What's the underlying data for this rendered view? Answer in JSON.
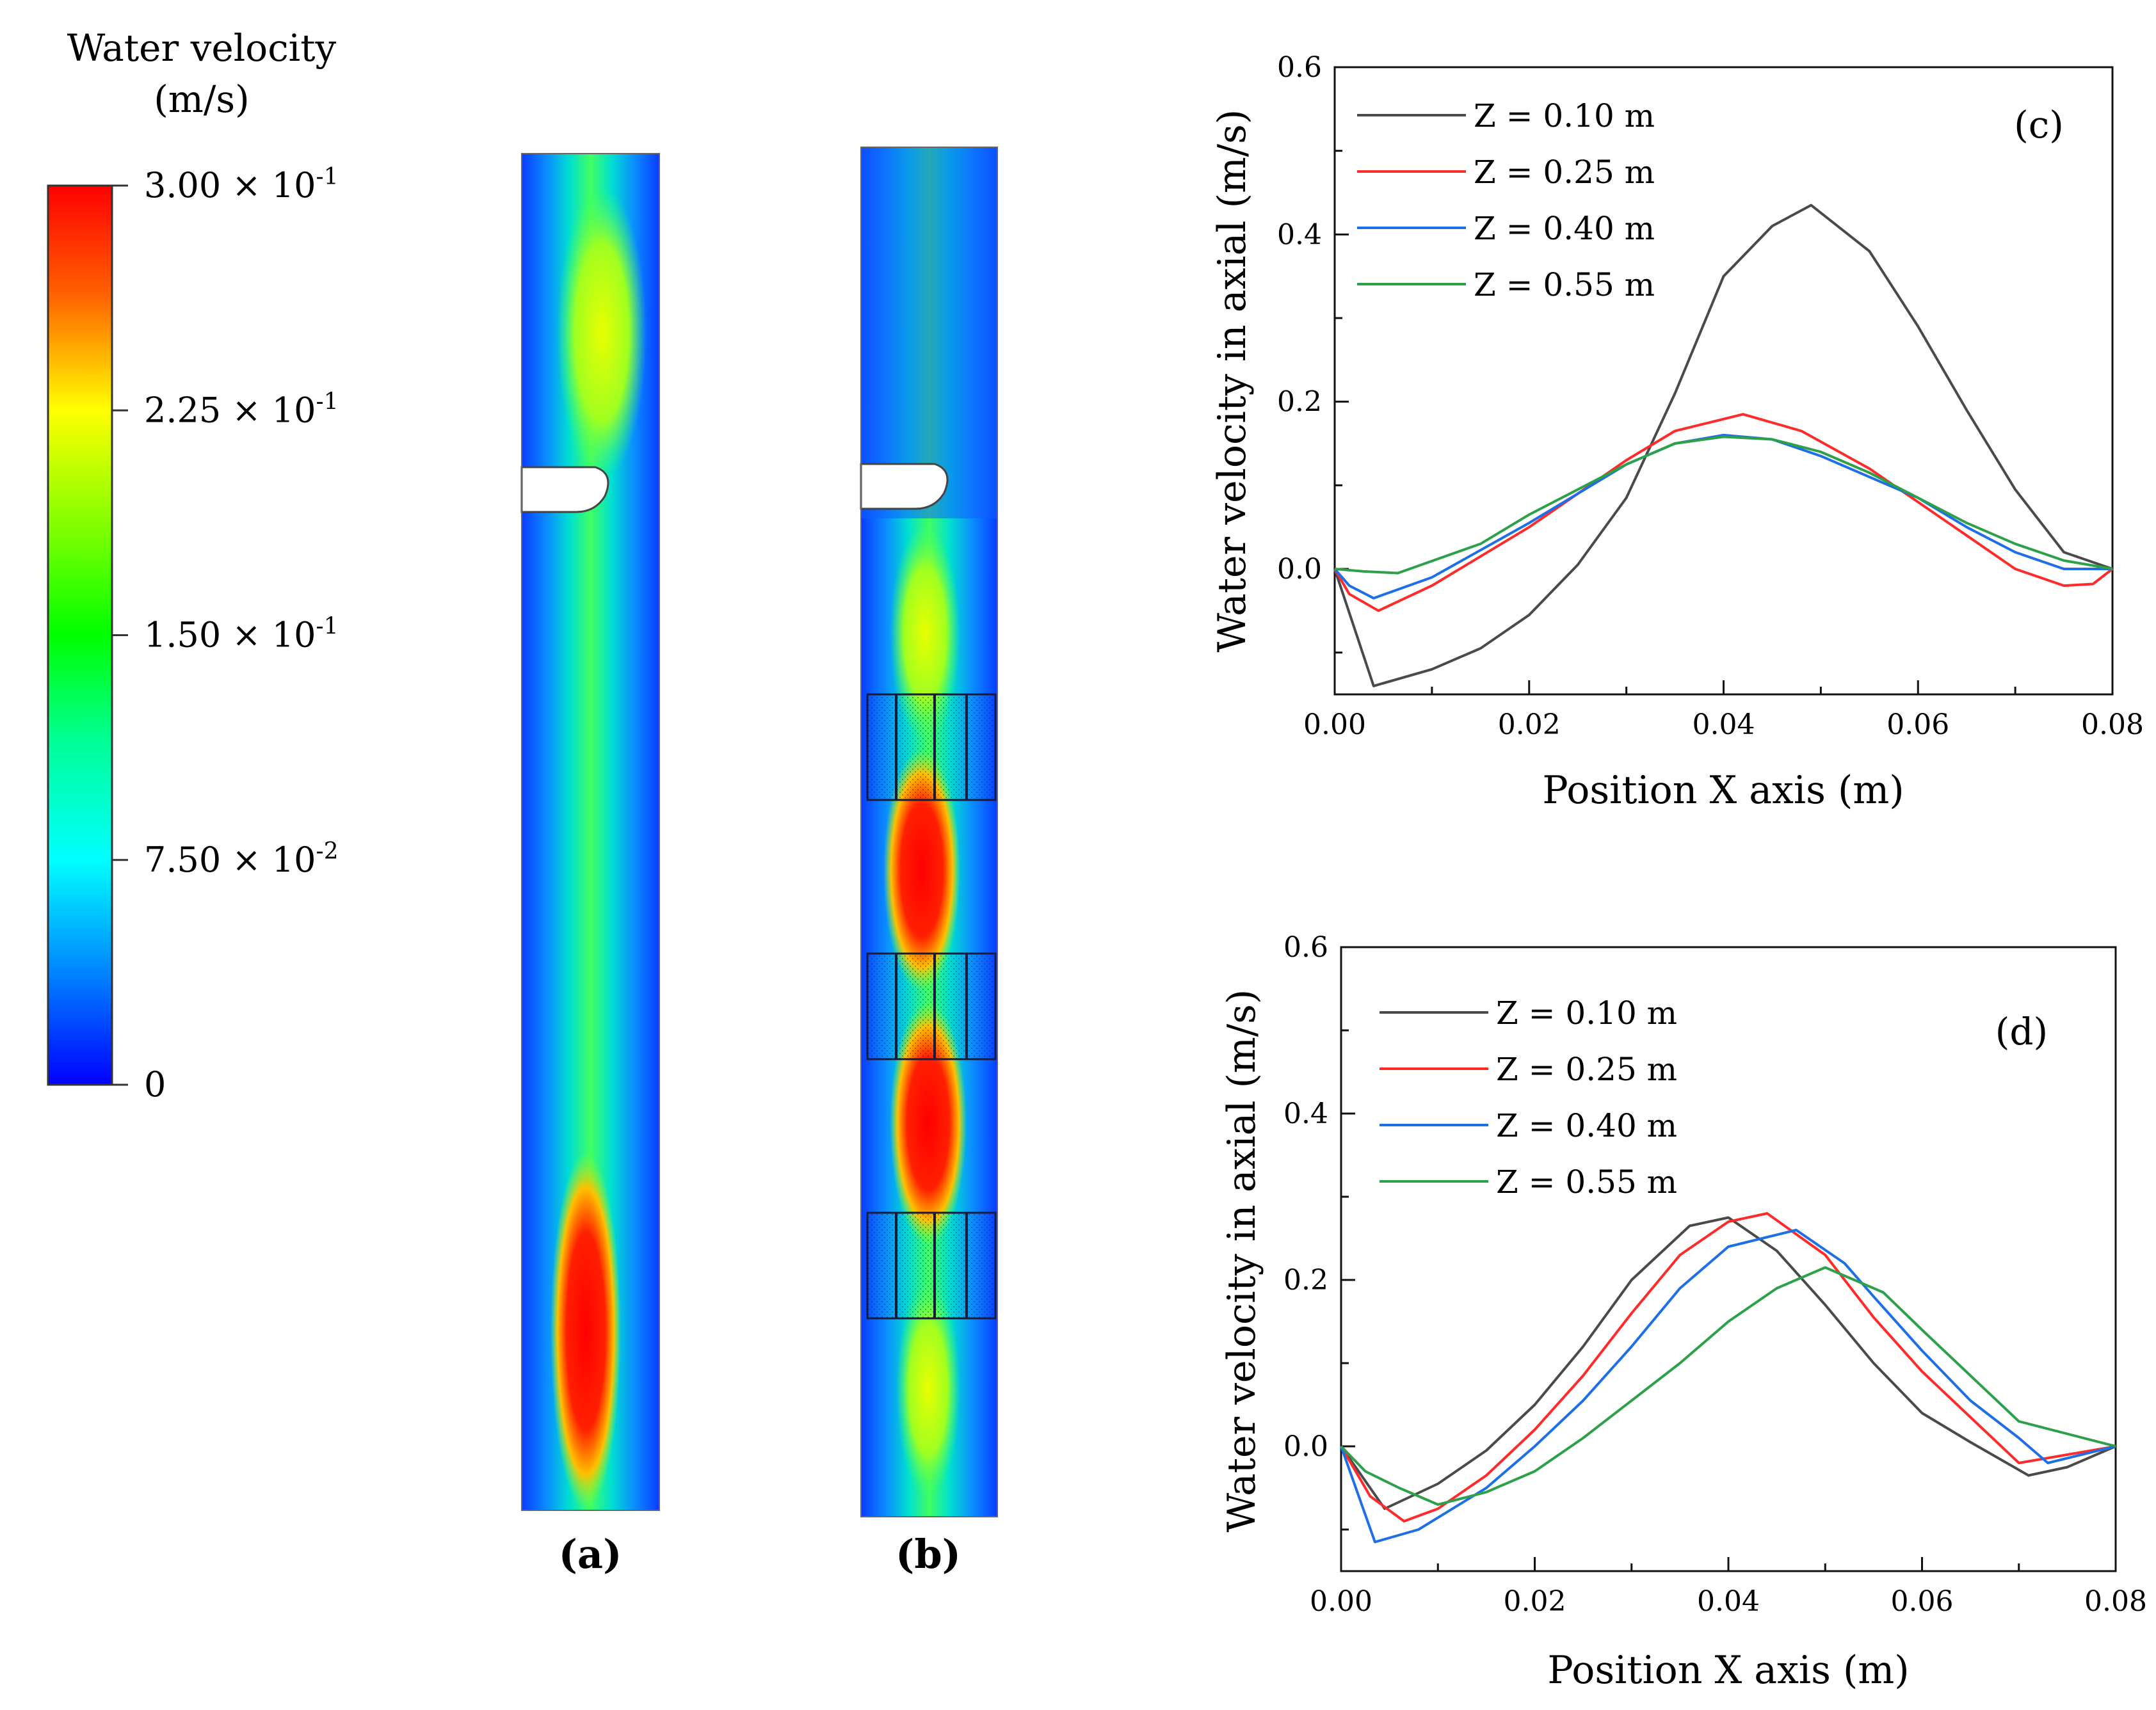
{
  "colorbar": {
    "title_line1": "Water velocity",
    "title_line2": "(m/s)",
    "ticks": [
      {
        "value": 0.3,
        "label": "3.00 × 10",
        "exp": "-1"
      },
      {
        "value": 0.225,
        "label": "2.25 × 10",
        "exp": "-1"
      },
      {
        "value": 0.15,
        "label": "1.50 × 10",
        "exp": "-1"
      },
      {
        "value": 0.075,
        "label": "7.50 × 10",
        "exp": "-2"
      },
      {
        "value": 0,
        "label": "0",
        "exp": ""
      }
    ],
    "colors": [
      "#ff0000",
      "#ff8000",
      "#ffff00",
      "#80ff00",
      "#00ff00",
      "#00ff80",
      "#00ffff",
      "#0080ff",
      "#0000ff"
    ]
  },
  "contours": {
    "a_label": "(a)",
    "b_label": "(b)"
  },
  "chart_data": [
    {
      "type": "line",
      "panel_label": "(c)",
      "xlabel": "Position X axis (m)",
      "ylabel": "Water velocity in axial (m/s)",
      "xlim": [
        0,
        0.08
      ],
      "ylim": [
        -0.15,
        0.6
      ],
      "xticks": [
        "0.00",
        "0.02",
        "0.04",
        "0.06",
        "0.08"
      ],
      "yticks": [
        "0.0",
        "0.2",
        "0.4",
        "0.6"
      ],
      "legend_position": "top-left",
      "series": [
        {
          "name": "Z = 0.10 m",
          "color": "#4a4a4a",
          "points": [
            [
              0,
              0
            ],
            [
              0.004,
              -0.14
            ],
            [
              0.01,
              -0.12
            ],
            [
              0.015,
              -0.095
            ],
            [
              0.02,
              -0.055
            ],
            [
              0.025,
              0.005
            ],
            [
              0.03,
              0.085
            ],
            [
              0.035,
              0.21
            ],
            [
              0.04,
              0.35
            ],
            [
              0.045,
              0.41
            ],
            [
              0.049,
              0.435
            ],
            [
              0.055,
              0.38
            ],
            [
              0.06,
              0.29
            ],
            [
              0.065,
              0.19
            ],
            [
              0.07,
              0.095
            ],
            [
              0.075,
              0.02
            ],
            [
              0.08,
              0
            ]
          ]
        },
        {
          "name": "Z = 0.25 m",
          "color": "#ff2a2a",
          "points": [
            [
              0,
              0
            ],
            [
              0.0015,
              -0.03
            ],
            [
              0.0045,
              -0.05
            ],
            [
              0.01,
              -0.02
            ],
            [
              0.02,
              0.05
            ],
            [
              0.03,
              0.13
            ],
            [
              0.035,
              0.165
            ],
            [
              0.042,
              0.185
            ],
            [
              0.048,
              0.165
            ],
            [
              0.055,
              0.12
            ],
            [
              0.06,
              0.08
            ],
            [
              0.065,
              0.04
            ],
            [
              0.07,
              0
            ],
            [
              0.075,
              -0.02
            ],
            [
              0.078,
              -0.018
            ],
            [
              0.08,
              0
            ]
          ]
        },
        {
          "name": "Z = 0.40 m",
          "color": "#1e6fe6",
          "points": [
            [
              0,
              0
            ],
            [
              0.0015,
              -0.02
            ],
            [
              0.004,
              -0.035
            ],
            [
              0.01,
              -0.01
            ],
            [
              0.02,
              0.055
            ],
            [
              0.03,
              0.125
            ],
            [
              0.035,
              0.15
            ],
            [
              0.04,
              0.16
            ],
            [
              0.045,
              0.155
            ],
            [
              0.05,
              0.135
            ],
            [
              0.055,
              0.11
            ],
            [
              0.06,
              0.085
            ],
            [
              0.065,
              0.05
            ],
            [
              0.07,
              0.02
            ],
            [
              0.075,
              0
            ],
            [
              0.08,
              0
            ]
          ]
        },
        {
          "name": "Z = 0.55 m",
          "color": "#2da04a",
          "points": [
            [
              0,
              0
            ],
            [
              0.003,
              -0.003
            ],
            [
              0.0065,
              -0.005
            ],
            [
              0.015,
              0.03
            ],
            [
              0.02,
              0.065
            ],
            [
              0.03,
              0.125
            ],
            [
              0.035,
              0.15
            ],
            [
              0.04,
              0.158
            ],
            [
              0.045,
              0.155
            ],
            [
              0.05,
              0.14
            ],
            [
              0.055,
              0.115
            ],
            [
              0.06,
              0.085
            ],
            [
              0.065,
              0.055
            ],
            [
              0.07,
              0.03
            ],
            [
              0.075,
              0.01
            ],
            [
              0.08,
              0
            ]
          ]
        }
      ]
    },
    {
      "type": "line",
      "panel_label": "(d)",
      "xlabel": "Position X axis (m)",
      "ylabel": "Water velocity in axial (m/s)",
      "xlim": [
        0,
        0.08
      ],
      "ylim": [
        -0.15,
        0.6
      ],
      "xticks": [
        "0.00",
        "0.02",
        "0.04",
        "0.06",
        "0.08"
      ],
      "yticks": [
        "0.0",
        "0.2",
        "0.4",
        "0.6"
      ],
      "legend_position": "top-left",
      "series": [
        {
          "name": "Z = 0.10 m",
          "color": "#4a4a4a",
          "points": [
            [
              0,
              0
            ],
            [
              0.0045,
              -0.075
            ],
            [
              0.01,
              -0.045
            ],
            [
              0.015,
              -0.005
            ],
            [
              0.02,
              0.05
            ],
            [
              0.025,
              0.12
            ],
            [
              0.03,
              0.2
            ],
            [
              0.036,
              0.265
            ],
            [
              0.04,
              0.275
            ],
            [
              0.045,
              0.235
            ],
            [
              0.05,
              0.17
            ],
            [
              0.055,
              0.1
            ],
            [
              0.06,
              0.04
            ],
            [
              0.065,
              0.005
            ],
            [
              0.071,
              -0.035
            ],
            [
              0.075,
              -0.025
            ],
            [
              0.08,
              0
            ]
          ]
        },
        {
          "name": "Z = 0.25 m",
          "color": "#ff2a2a",
          "points": [
            [
              0,
              0
            ],
            [
              0.003,
              -0.06
            ],
            [
              0.0065,
              -0.09
            ],
            [
              0.01,
              -0.075
            ],
            [
              0.015,
              -0.035
            ],
            [
              0.02,
              0.02
            ],
            [
              0.025,
              0.085
            ],
            [
              0.03,
              0.16
            ],
            [
              0.035,
              0.23
            ],
            [
              0.04,
              0.27
            ],
            [
              0.044,
              0.28
            ],
            [
              0.05,
              0.23
            ],
            [
              0.055,
              0.155
            ],
            [
              0.06,
              0.09
            ],
            [
              0.065,
              0.035
            ],
            [
              0.07,
              -0.02
            ],
            [
              0.075,
              -0.01
            ],
            [
              0.08,
              0
            ]
          ]
        },
        {
          "name": "Z = 0.40 m",
          "color": "#1e6fe6",
          "points": [
            [
              0,
              0
            ],
            [
              0.0035,
              -0.115
            ],
            [
              0.008,
              -0.1
            ],
            [
              0.015,
              -0.05
            ],
            [
              0.02,
              0
            ],
            [
              0.025,
              0.055
            ],
            [
              0.03,
              0.12
            ],
            [
              0.035,
              0.19
            ],
            [
              0.04,
              0.24
            ],
            [
              0.047,
              0.26
            ],
            [
              0.052,
              0.22
            ],
            [
              0.055,
              0.18
            ],
            [
              0.06,
              0.115
            ],
            [
              0.065,
              0.055
            ],
            [
              0.07,
              0.01
            ],
            [
              0.073,
              -0.02
            ],
            [
              0.08,
              0
            ]
          ]
        },
        {
          "name": "Z = 0.55 m",
          "color": "#2da04a",
          "points": [
            [
              0,
              0
            ],
            [
              0.0025,
              -0.03
            ],
            [
              0.006,
              -0.05
            ],
            [
              0.01,
              -0.07
            ],
            [
              0.015,
              -0.055
            ],
            [
              0.02,
              -0.03
            ],
            [
              0.025,
              0.01
            ],
            [
              0.03,
              0.055
            ],
            [
              0.035,
              0.1
            ],
            [
              0.04,
              0.15
            ],
            [
              0.045,
              0.19
            ],
            [
              0.05,
              0.215
            ],
            [
              0.056,
              0.185
            ],
            [
              0.06,
              0.14
            ],
            [
              0.065,
              0.085
            ],
            [
              0.07,
              0.03
            ],
            [
              0.075,
              0.015
            ],
            [
              0.08,
              0
            ]
          ]
        }
      ]
    }
  ]
}
